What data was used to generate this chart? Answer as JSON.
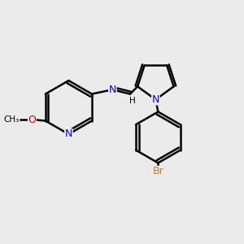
{
  "bg_color": "#ebebeb",
  "bond_color": "#000000",
  "bond_lw": 1.8,
  "atom_colors": {
    "N": "#0000ff",
    "O": "#cc0000",
    "Br": "#cc7722",
    "C": "#000000",
    "H": "#000000"
  },
  "font_size": 9,
  "figsize": [
    3.0,
    3.0
  ],
  "dpi": 100
}
